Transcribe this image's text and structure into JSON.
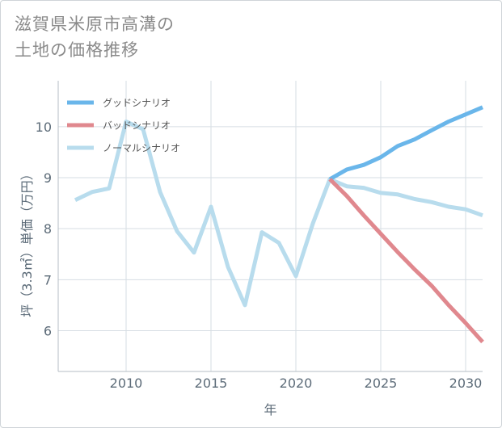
{
  "title_line1": "滋賀県米原市高溝の",
  "title_line2": "土地の価格推移",
  "chart_data": {
    "type": "line",
    "xlabel": "年",
    "ylabel": "坪（3.3㎡）単価（万円）",
    "xlim": [
      2006,
      2031
    ],
    "ylim": [
      5.2,
      10.9
    ],
    "xticks": [
      2010,
      2015,
      2020,
      2025,
      2030
    ],
    "yticks": [
      6,
      7,
      8,
      9,
      10
    ],
    "grid": true,
    "legend_position": "top-left",
    "series": [
      {
        "name": "グッドシナリオ",
        "color": "#6ab6ea",
        "x": [
          2022,
          2023,
          2024,
          2025,
          2026,
          2027,
          2028,
          2029,
          2030,
          2031
        ],
        "y": [
          8.97,
          9.16,
          9.25,
          9.4,
          9.62,
          9.75,
          9.93,
          10.1,
          10.24,
          10.38
        ]
      },
      {
        "name": "バッドシナリオ",
        "color": "#e0888e",
        "x": [
          2022,
          2023,
          2024,
          2025,
          2026,
          2027,
          2028,
          2029,
          2030,
          2031
        ],
        "y": [
          8.97,
          8.64,
          8.26,
          7.9,
          7.54,
          7.2,
          6.88,
          6.5,
          6.15,
          5.78
        ]
      },
      {
        "name": "ノーマルシナリオ",
        "color": "#b8dced",
        "x": [
          2007,
          2008,
          2009,
          2010,
          2011,
          2012,
          2013,
          2014,
          2015,
          2016,
          2017,
          2018,
          2019,
          2020,
          2021,
          2022,
          2023,
          2024,
          2025,
          2026,
          2027,
          2028,
          2029,
          2030,
          2031
        ],
        "y": [
          8.56,
          8.72,
          8.79,
          10.1,
          9.95,
          8.72,
          7.95,
          7.53,
          8.43,
          7.25,
          6.5,
          7.93,
          7.72,
          7.07,
          8.1,
          8.97,
          8.83,
          8.8,
          8.7,
          8.67,
          8.58,
          8.52,
          8.43,
          8.38,
          8.26
        ]
      }
    ]
  }
}
